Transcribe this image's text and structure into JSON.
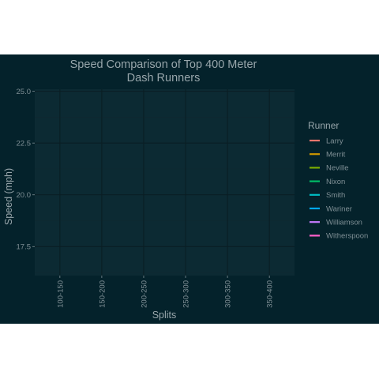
{
  "chart_data": {
    "type": "line",
    "title": "Speed Comparison of Top 400 Meter Dash Runners",
    "title_lines": [
      "Speed Comparison of Top 400 Meter",
      "Dash Runners"
    ],
    "xlabel": "Splits",
    "ylabel": "Speed (mph)",
    "categories": [
      "100-150",
      "150-200",
      "200-250",
      "250-300",
      "300-350",
      "350-400"
    ],
    "ylim": [
      16.1,
      25.1
    ],
    "yticks": [
      17.5,
      20.0,
      22.5,
      25.0
    ],
    "ytick_labels": [
      "17.5",
      "20.0",
      "22.5",
      "25.0"
    ],
    "grid": true,
    "legend": {
      "title": "Runner",
      "placement": "right",
      "entries": [
        {
          "name": "Larry",
          "color": "#F8766D"
        },
        {
          "name": "Merrit",
          "color": "#CD9600"
        },
        {
          "name": "Neville",
          "color": "#7CAE00"
        },
        {
          "name": "Nixon",
          "color": "#00BE67"
        },
        {
          "name": "Smith",
          "color": "#00BFC4"
        },
        {
          "name": "Wariner",
          "color": "#00A9FF"
        },
        {
          "name": "Williamson",
          "color": "#C77CFF"
        },
        {
          "name": "Witherspoon",
          "color": "#FF61CC"
        }
      ]
    },
    "series": [],
    "colors": {
      "background": "#04222b",
      "panel": "#0c2a33",
      "grid_major": "#0a1e24",
      "grid_minor": "#0f2830",
      "text": "#98a6ab",
      "tick_text": "#7f8f95"
    }
  }
}
